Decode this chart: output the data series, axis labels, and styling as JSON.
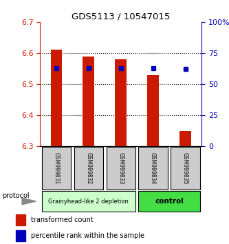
{
  "title": "GDS5113 / 10547015",
  "samples": [
    "GSM999831",
    "GSM999832",
    "GSM999833",
    "GSM999834",
    "GSM999835"
  ],
  "bar_base": 6.3,
  "bar_tops": [
    6.61,
    6.59,
    6.58,
    6.53,
    6.35
  ],
  "percentile_ranks": [
    63,
    63,
    63,
    63,
    62
  ],
  "ylim_left": [
    6.3,
    6.7
  ],
  "ylim_right": [
    0,
    100
  ],
  "yticks_left": [
    6.3,
    6.4,
    6.5,
    6.6,
    6.7
  ],
  "yticks_right": [
    0,
    25,
    50,
    75,
    100
  ],
  "ytick_labels_right": [
    "0",
    "25",
    "50",
    "75",
    "100%"
  ],
  "bar_color": "#cc1a00",
  "dot_color": "#0000bb",
  "group1_label": "Grainyhead-like 2 depletion",
  "group2_label": "control",
  "group1_color": "#ccffcc",
  "group2_color": "#44dd44",
  "group1_indices": [
    0,
    1,
    2
  ],
  "group2_indices": [
    3,
    4
  ],
  "protocol_label": "protocol",
  "legend_red_label": "transformed count",
  "legend_blue_label": "percentile rank within the sample",
  "tick_label_color_left": "#cc1a00",
  "tick_label_color_right": "#0000bb",
  "sample_box_color": "#cccccc"
}
